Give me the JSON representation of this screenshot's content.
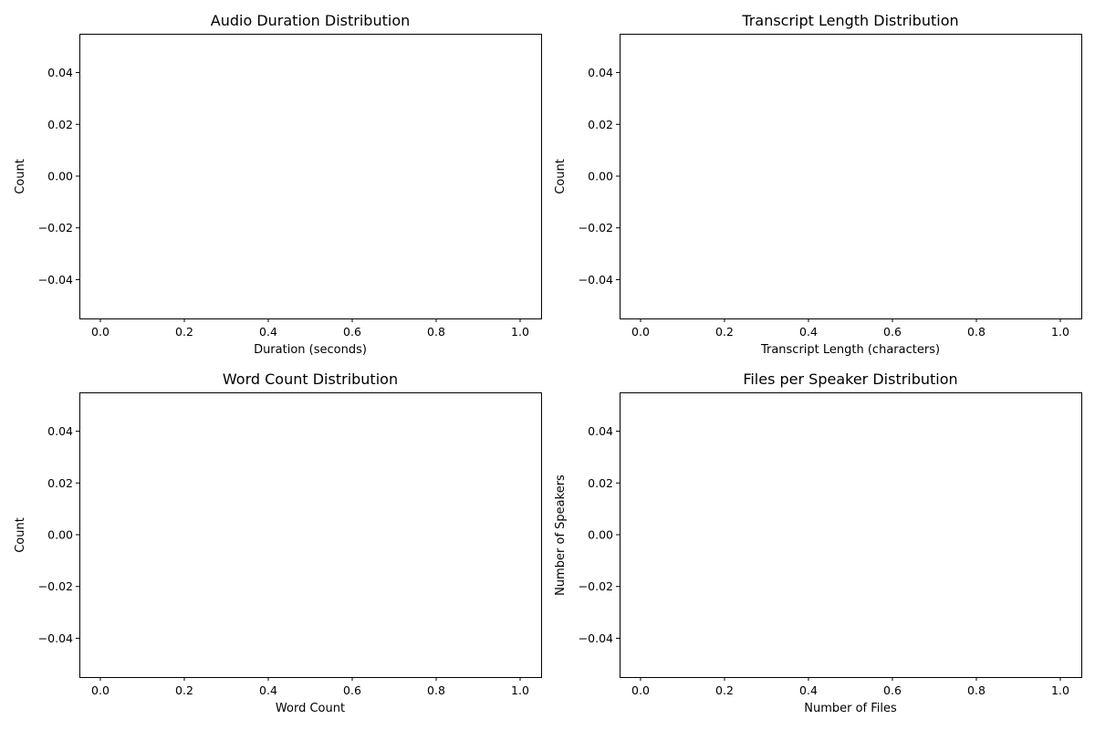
{
  "chart_data": [
    {
      "type": "bar",
      "title": "Audio Duration Distribution",
      "xlabel": "Duration (seconds)",
      "ylabel": "Count",
      "xlim": [
        -0.05,
        1.05
      ],
      "ylim": [
        -0.055,
        0.055
      ],
      "xticks": [
        "0.0",
        "0.2",
        "0.4",
        "0.6",
        "0.8",
        "1.0"
      ],
      "yticks": [
        "0.04",
        "0.02",
        "0.00",
        "−0.02",
        "−0.04"
      ],
      "values": [],
      "grid": false
    },
    {
      "type": "bar",
      "title": "Transcript Length Distribution",
      "xlabel": "Transcript Length (characters)",
      "ylabel": "Count",
      "xlim": [
        -0.05,
        1.05
      ],
      "ylim": [
        -0.055,
        0.055
      ],
      "xticks": [
        "0.0",
        "0.2",
        "0.4",
        "0.6",
        "0.8",
        "1.0"
      ],
      "yticks": [
        "0.04",
        "0.02",
        "0.00",
        "−0.02",
        "−0.04"
      ],
      "values": [],
      "grid": false
    },
    {
      "type": "bar",
      "title": "Word Count Distribution",
      "xlabel": "Word Count",
      "ylabel": "Count",
      "xlim": [
        -0.05,
        1.05
      ],
      "ylim": [
        -0.055,
        0.055
      ],
      "xticks": [
        "0.0",
        "0.2",
        "0.4",
        "0.6",
        "0.8",
        "1.0"
      ],
      "yticks": [
        "0.04",
        "0.02",
        "0.00",
        "−0.02",
        "−0.04"
      ],
      "values": [],
      "grid": false
    },
    {
      "type": "bar",
      "title": "Files per Speaker Distribution",
      "xlabel": "Number of Files",
      "ylabel": "Number of Speakers",
      "xlim": [
        -0.05,
        1.05
      ],
      "ylim": [
        -0.055,
        0.055
      ],
      "xticks": [
        "0.0",
        "0.2",
        "0.4",
        "0.6",
        "0.8",
        "1.0"
      ],
      "yticks": [
        "0.04",
        "0.02",
        "0.00",
        "−0.02",
        "−0.04"
      ],
      "values": [],
      "grid": false
    }
  ]
}
